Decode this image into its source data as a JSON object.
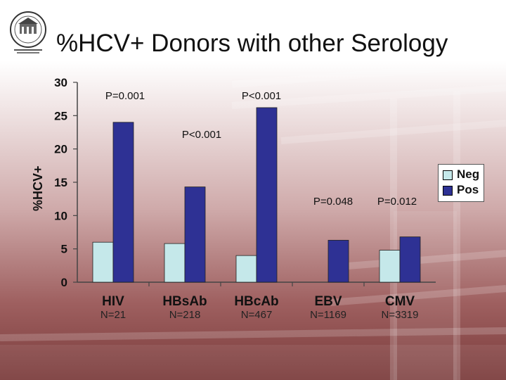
{
  "title": "%HCV+ Donors with other Serology",
  "logo": {
    "icon": "university-seal-icon"
  },
  "chart_data": {
    "type": "bar",
    "ylabel": "%HCV+",
    "ylim": [
      0,
      30
    ],
    "yticks": [
      0,
      5,
      10,
      15,
      20,
      25,
      30
    ],
    "grid": false,
    "legend_position": "right",
    "categories": [
      "HIV",
      "HBsAb",
      "HBcAb",
      "EBV",
      "CMV"
    ],
    "category_notes": [
      "N=21",
      "N=218",
      "N=467",
      "N=1169",
      "N=3319"
    ],
    "series": [
      {
        "name": "Neg",
        "values": [
          6.0,
          5.8,
          4.0,
          null,
          4.8
        ],
        "color": "#c5e8ea"
      },
      {
        "name": "Pos",
        "values": [
          24.0,
          14.3,
          26.2,
          6.3,
          6.8
        ],
        "color": "#2e3194"
      }
    ],
    "annotations": [
      {
        "text": "P=0.001",
        "near": "HIV"
      },
      {
        "text": "P<0.001",
        "near": "HBsAb"
      },
      {
        "text": "P<0.001",
        "near": "HBcAb"
      },
      {
        "text": "P=0.048",
        "near": "EBV"
      },
      {
        "text": "P=0.012",
        "near": "CMV"
      }
    ]
  }
}
